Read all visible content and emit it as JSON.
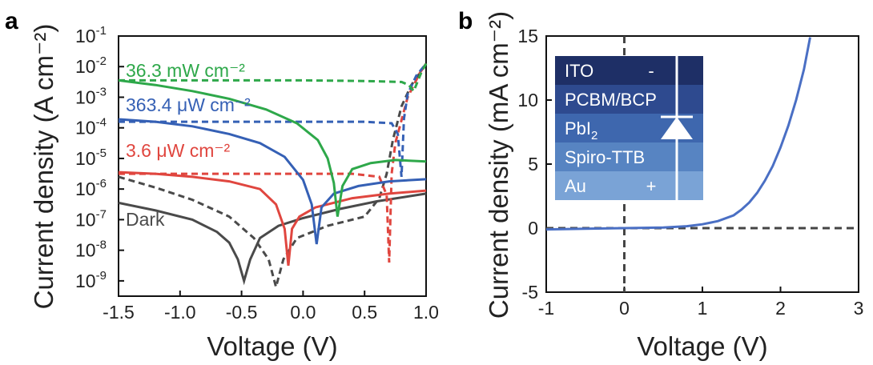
{
  "panels": {
    "a": {
      "letter": "a"
    },
    "b": {
      "letter": "b"
    }
  },
  "chart_data": [
    {
      "type": "line",
      "panel": "a",
      "xlabel": "Voltage (V)",
      "ylabel": "Current density (A cm⁻²)",
      "xlim": [
        -1.5,
        1.0
      ],
      "ylim_log10": [
        -9.5,
        -1
      ],
      "y_scale": "log",
      "x_ticks": [
        "-1.5",
        "-1.0",
        "-0.5",
        "0.0",
        "0.5",
        "1.0"
      ],
      "y_ticks": [
        {
          "base": "10",
          "exp": "-1"
        },
        {
          "base": "10",
          "exp": "-2"
        },
        {
          "base": "10",
          "exp": "-3"
        },
        {
          "base": "10",
          "exp": "-4"
        },
        {
          "base": "10",
          "exp": "-5"
        },
        {
          "base": "10",
          "exp": "-6"
        },
        {
          "base": "10",
          "exp": "-7"
        },
        {
          "base": "10",
          "exp": "-8"
        },
        {
          "base": "10",
          "exp": "-9"
        }
      ],
      "legend_placement": "inline labels at left",
      "series": [
        {
          "name": "Dark",
          "color": "#4a4a4a",
          "solid": {
            "x": [
              -1.5,
              -1.2,
              -0.9,
              -0.7,
              -0.6,
              -0.53,
              -0.48,
              -0.43,
              -0.35,
              -0.2,
              0.0,
              0.3,
              0.6,
              1.0
            ],
            "log10_y": [
              -6.45,
              -6.7,
              -7.0,
              -7.4,
              -7.75,
              -8.3,
              -9.0,
              -8.3,
              -7.6,
              -7.2,
              -6.95,
              -6.65,
              -6.4,
              -6.15
            ]
          },
          "dashed": {
            "x": [
              -1.5,
              -1.2,
              -0.9,
              -0.6,
              -0.4,
              -0.28,
              -0.22,
              -0.16,
              -0.05,
              0.2,
              0.5,
              0.62,
              0.68,
              0.73,
              0.8,
              0.88,
              0.95,
              1.0
            ],
            "log10_y": [
              -5.6,
              -5.95,
              -6.35,
              -6.9,
              -7.6,
              -8.3,
              -9.2,
              -8.3,
              -7.6,
              -7.2,
              -6.9,
              -6.3,
              -5.5,
              -4.4,
              -3.3,
              -2.6,
              -2.2,
              -1.9
            ]
          }
        },
        {
          "name": "3.6 μW cm⁻²",
          "color": "#e0463f",
          "solid": {
            "x": [
              -1.5,
              -1.2,
              -0.9,
              -0.6,
              -0.35,
              -0.22,
              -0.15,
              -0.12,
              -0.09,
              -0.03,
              0.1,
              0.4,
              0.7,
              1.0
            ],
            "log10_y": [
              -5.45,
              -5.5,
              -5.6,
              -5.75,
              -6.0,
              -6.5,
              -7.3,
              -8.5,
              -7.3,
              -6.9,
              -6.6,
              -6.3,
              -6.15,
              -6.05
            ]
          },
          "dashed": {
            "x": [
              -1.5,
              -1.0,
              -0.5,
              0.0,
              0.4,
              0.62,
              0.68,
              0.7,
              0.72,
              0.75,
              0.85,
              0.95,
              1.0
            ],
            "log10_y": [
              -5.5,
              -5.5,
              -5.5,
              -5.5,
              -5.5,
              -5.6,
              -6.2,
              -8.4,
              -5.5,
              -4.5,
              -3.0,
              -2.2,
              -1.9
            ]
          }
        },
        {
          "name": "363.4 μW cm⁻²",
          "color": "#3560b5",
          "solid": {
            "x": [
              -1.5,
              -1.2,
              -0.9,
              -0.6,
              -0.35,
              -0.15,
              0.0,
              0.07,
              0.11,
              0.15,
              0.25,
              0.45,
              0.7,
              1.0
            ],
            "log10_y": [
              -3.72,
              -3.8,
              -3.95,
              -4.2,
              -4.5,
              -4.95,
              -5.7,
              -6.5,
              -7.8,
              -6.6,
              -6.15,
              -5.9,
              -5.75,
              -5.68
            ]
          },
          "dashed": {
            "x": [
              -1.5,
              -1.0,
              -0.5,
              0.0,
              0.5,
              0.72,
              0.77,
              0.8,
              0.82,
              0.85,
              0.92,
              1.0
            ],
            "log10_y": [
              -3.8,
              -3.8,
              -3.8,
              -3.8,
              -3.8,
              -3.85,
              -4.2,
              -5.6,
              -3.7,
              -2.9,
              -2.3,
              -1.9
            ]
          }
        },
        {
          "name": "36.3 mW cm⁻²",
          "color": "#2ea84a",
          "solid": {
            "x": [
              -1.5,
              -1.2,
              -0.9,
              -0.6,
              -0.3,
              -0.05,
              0.12,
              0.2,
              0.25,
              0.28,
              0.32,
              0.4,
              0.55,
              0.75,
              1.0
            ],
            "log10_y": [
              -2.45,
              -2.6,
              -2.8,
              -3.05,
              -3.4,
              -3.85,
              -4.4,
              -5.0,
              -5.8,
              -6.9,
              -5.9,
              -5.35,
              -5.15,
              -5.05,
              -5.1
            ]
          },
          "dashed": {
            "x": [
              -1.5,
              -1.0,
              -0.5,
              0.0,
              0.5,
              0.8,
              0.86,
              0.9,
              0.93,
              0.96,
              1.0
            ],
            "log10_y": [
              -2.45,
              -2.45,
              -2.45,
              -2.45,
              -2.47,
              -2.5,
              -2.6,
              -2.8,
              -2.5,
              -2.2,
              -1.9
            ]
          }
        }
      ]
    },
    {
      "type": "line",
      "panel": "b",
      "xlabel": "Voltage (V)",
      "ylabel": "Current density (mA cm⁻²)",
      "xlim": [
        -1,
        3
      ],
      "ylim": [
        -5,
        15
      ],
      "x_ticks": [
        "-1",
        "0",
        "1",
        "2",
        "3"
      ],
      "y_ticks": [
        "15",
        "10",
        "5",
        "0",
        "-5"
      ],
      "reference_lines": {
        "x": 0,
        "y": 0,
        "style": "dashed"
      },
      "series": [
        {
          "color": "#4a6fc4",
          "x": [
            -1.0,
            -0.5,
            0.0,
            0.5,
            0.8,
            1.0,
            1.2,
            1.4,
            1.5,
            1.6,
            1.7,
            1.8,
            1.9,
            2.0,
            2.1,
            2.2,
            2.3,
            2.38
          ],
          "y": [
            -0.1,
            -0.05,
            0.0,
            0.05,
            0.15,
            0.3,
            0.55,
            1.0,
            1.45,
            2.0,
            2.75,
            3.7,
            4.85,
            6.3,
            8.0,
            10.0,
            12.4,
            14.9
          ]
        }
      ],
      "inset": {
        "layers": [
          {
            "name": "ITO",
            "mark": "-",
            "color": "#1e2f66"
          },
          {
            "name": "PCBM/BCP",
            "mark": "",
            "color": "#2e4a8f"
          },
          {
            "name": "PbI",
            "subscript": "2",
            "mark": "diode-symbol",
            "color": "#3e67ae"
          },
          {
            "name": "Spiro-TTB",
            "mark": "",
            "color": "#5784c2"
          },
          {
            "name": "Au",
            "mark": "+",
            "color": "#7aa3d6"
          }
        ]
      }
    }
  ]
}
